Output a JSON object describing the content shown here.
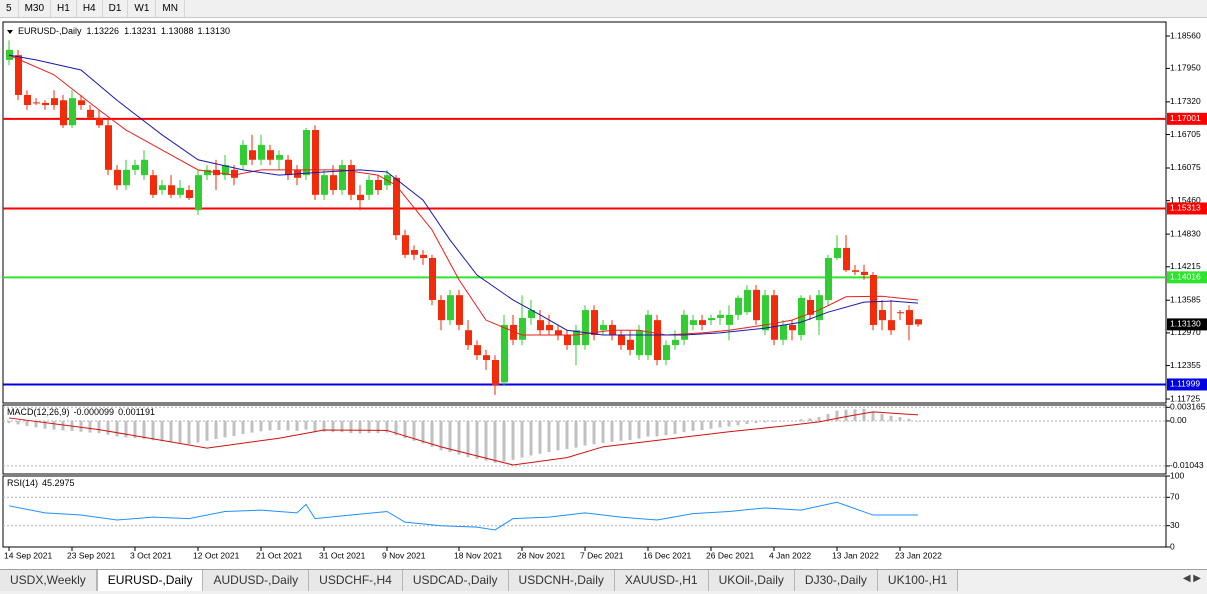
{
  "toolbar": {
    "buttons": [
      "5",
      "M30",
      "H1",
      "H4",
      "D1",
      "W1",
      "MN"
    ]
  },
  "tabs": [
    "USDX,Weekly",
    "EURUSD-,Daily",
    "AUDUSD-,Daily",
    "USDCHF-,H4",
    "USDCAD-,Daily",
    "USDCNH-,Daily",
    "XAUUSD-,H1",
    "UKOil-,Daily",
    "DJ30-,Daily",
    "UK100-,H1"
  ],
  "chart_data": [
    {
      "type": "candlestick",
      "title": "EURUSD-,Daily",
      "categories": [
        "14 Sep 2021",
        null,
        null,
        null,
        null,
        null,
        null,
        "23 Sep 2021",
        null,
        null,
        null,
        null,
        null,
        null,
        "3 Oct 2021",
        null,
        null,
        null,
        null,
        null,
        null,
        "12 Oct 2021",
        null,
        null,
        null,
        null,
        null,
        null,
        "21 Oct 2021",
        null,
        null,
        null,
        null,
        null,
        null,
        "31 Oct 2021",
        null,
        null,
        null,
        null,
        null,
        null,
        "9 Nov 2021",
        null,
        null,
        null,
        null,
        null,
        null,
        null,
        "18 Nov 2021",
        null,
        null,
        null,
        null,
        null,
        null,
        "28 Nov 2021",
        null,
        null,
        null,
        null,
        null,
        null,
        "7 Dec 2021",
        null,
        null,
        null,
        null,
        null,
        null,
        "16 Dec 2021",
        null,
        null,
        null,
        null,
        null,
        null,
        "26 Dec 2021",
        null,
        null,
        null,
        null,
        null,
        null,
        "4 Jan 2022",
        null,
        null,
        null,
        null,
        null,
        null,
        "13 Jan 2022",
        null,
        null,
        null,
        null,
        null,
        null,
        "23 Jan 2022",
        null,
        null
      ],
      "candles": [
        [
          1.1811,
          1.1848,
          1.1801,
          1.183
        ],
        [
          1.182,
          1.183,
          1.1735,
          1.1745
        ],
        [
          1.1745,
          1.1754,
          1.1717,
          1.1726
        ],
        [
          1.1731,
          1.1739,
          1.1726,
          1.173
        ],
        [
          1.173,
          1.1735,
          1.1717,
          1.1726
        ],
        [
          1.1739,
          1.1754,
          1.1717,
          1.1726
        ],
        [
          1.1735,
          1.1745,
          1.1683,
          1.1688
        ],
        [
          1.1688,
          1.1754,
          1.1683,
          1.1739
        ],
        [
          1.1735,
          1.1745,
          1.1717,
          1.1726
        ],
        [
          1.1717,
          1.1726,
          1.1698,
          1.1702
        ],
        [
          1.1702,
          1.1717,
          1.1683,
          1.1688
        ],
        [
          1.1688,
          1.1698,
          1.1594,
          1.1604
        ],
        [
          1.1604,
          1.1613,
          1.1566,
          1.1575
        ],
        [
          1.1575,
          1.1623,
          1.1566,
          1.1604
        ],
        [
          1.1604,
          1.1623,
          1.1594,
          1.1613
        ],
        [
          1.1594,
          1.1641,
          1.1585,
          1.1623
        ],
        [
          1.1594,
          1.1604,
          1.1551,
          1.1557
        ],
        [
          1.1566,
          1.1585,
          1.1557,
          1.1575
        ],
        [
          1.1575,
          1.1594,
          1.1551,
          1.1557
        ],
        [
          1.1557,
          1.1585,
          1.1551,
          1.157
        ],
        [
          1.1566,
          1.1575,
          1.1547,
          1.1551
        ],
        [
          1.1528,
          1.1604,
          1.1519,
          1.1594
        ],
        [
          1.1594,
          1.1613,
          1.1585,
          1.1604
        ],
        [
          1.1604,
          1.1623,
          1.1566,
          1.1594
        ],
        [
          1.1594,
          1.1632,
          1.1585,
          1.1613
        ],
        [
          1.1604,
          1.1613,
          1.1575,
          1.1589
        ],
        [
          1.1613,
          1.166,
          1.1604,
          1.1651
        ],
        [
          1.1641,
          1.167,
          1.1613,
          1.1623
        ],
        [
          1.1623,
          1.167,
          1.1613,
          1.1651
        ],
        [
          1.1641,
          1.1651,
          1.1613,
          1.1623
        ],
        [
          1.1623,
          1.1641,
          1.1604,
          1.1632
        ],
        [
          1.1623,
          1.1632,
          1.1585,
          1.1594
        ],
        [
          1.1604,
          1.1613,
          1.1575,
          1.1589
        ],
        [
          1.1594,
          1.1683,
          1.1585,
          1.1679
        ],
        [
          1.1679,
          1.1688,
          1.1547,
          1.1557
        ],
        [
          1.1557,
          1.1604,
          1.1547,
          1.1594
        ],
        [
          1.1594,
          1.1613,
          1.1557,
          1.1566
        ],
        [
          1.1566,
          1.1623,
          1.1557,
          1.1613
        ],
        [
          1.1613,
          1.1623,
          1.1547,
          1.1557
        ],
        [
          1.1557,
          1.1575,
          1.1528,
          1.1547
        ],
        [
          1.1557,
          1.1594,
          1.1547,
          1.1585
        ],
        [
          1.1585,
          1.1594,
          1.1557,
          1.1566
        ],
        [
          1.1575,
          1.1604,
          1.1566,
          1.1594
        ],
        [
          1.1589,
          1.1594,
          1.1472,
          1.1481
        ],
        [
          1.1481,
          1.1491,
          1.1438,
          1.1444
        ],
        [
          1.1453,
          1.1462,
          1.1434,
          1.1444
        ],
        [
          1.1444,
          1.1453,
          1.1425,
          1.1438
        ],
        [
          1.1438,
          1.1444,
          1.1349,
          1.1359
        ],
        [
          1.1359,
          1.1368,
          1.1302,
          1.1321
        ],
        [
          1.1321,
          1.1378,
          1.1312,
          1.1368
        ],
        [
          1.1368,
          1.1378,
          1.1302,
          1.1312
        ],
        [
          1.1302,
          1.1321,
          1.1265,
          1.1274
        ],
        [
          1.1274,
          1.1283,
          1.1246,
          1.1255
        ],
        [
          1.1255,
          1.1265,
          1.1227,
          1.1246
        ],
        [
          1.1246,
          1.1255,
          1.118,
          1.1199
        ],
        [
          1.1204,
          1.1331,
          1.1199,
          1.1312
        ],
        [
          1.1312,
          1.1331,
          1.1274,
          1.1284
        ],
        [
          1.1284,
          1.1368,
          1.1274,
          1.1325
        ],
        [
          1.1325,
          1.1359,
          1.1312,
          1.134
        ],
        [
          1.1321,
          1.134,
          1.1293,
          1.1302
        ],
        [
          1.1312,
          1.1331,
          1.1293,
          1.1302
        ],
        [
          1.1302,
          1.1312,
          1.1283,
          1.1293
        ],
        [
          1.1293,
          1.1302,
          1.1265,
          1.1274
        ],
        [
          1.1274,
          1.1312,
          1.1236,
          1.1302
        ],
        [
          1.1274,
          1.1349,
          1.1265,
          1.134
        ],
        [
          1.134,
          1.1349,
          1.1283,
          1.1293
        ],
        [
          1.1302,
          1.1321,
          1.1293,
          1.1312
        ],
        [
          1.1312,
          1.1321,
          1.1283,
          1.1293
        ],
        [
          1.1293,
          1.1302,
          1.1265,
          1.1274
        ],
        [
          1.1284,
          1.1302,
          1.1255,
          1.1265
        ],
        [
          1.1255,
          1.1312,
          1.1246,
          1.1302
        ],
        [
          1.1255,
          1.134,
          1.1246,
          1.1331
        ],
        [
          1.1321,
          1.1331,
          1.1236,
          1.1246
        ],
        [
          1.1246,
          1.1283,
          1.1236,
          1.1274
        ],
        [
          1.1274,
          1.1302,
          1.1265,
          1.1284
        ],
        [
          1.1284,
          1.134,
          1.1274,
          1.1331
        ],
        [
          1.1312,
          1.1331,
          1.1302,
          1.1321
        ],
        [
          1.1321,
          1.1331,
          1.1302,
          1.1312
        ],
        [
          1.1321,
          1.1331,
          1.1312,
          1.1325
        ],
        [
          1.1325,
          1.134,
          1.1312,
          1.1331
        ],
        [
          1.1312,
          1.1349,
          1.1283,
          1.1331
        ],
        [
          1.1331,
          1.1368,
          1.1321,
          1.1363
        ],
        [
          1.1336,
          1.1387,
          1.1331,
          1.1378
        ],
        [
          1.1378,
          1.1387,
          1.1312,
          1.1321
        ],
        [
          1.1302,
          1.1378,
          1.1293,
          1.1368
        ],
        [
          1.1368,
          1.1378,
          1.1274,
          1.1284
        ],
        [
          1.1284,
          1.1321,
          1.1274,
          1.1312
        ],
        [
          1.1312,
          1.1321,
          1.1283,
          1.1302
        ],
        [
          1.1293,
          1.1368,
          1.1283,
          1.1363
        ],
        [
          1.1359,
          1.1368,
          1.1321,
          1.1331
        ],
        [
          1.1321,
          1.1378,
          1.1293,
          1.1368
        ],
        [
          1.1359,
          1.1444,
          1.1349,
          1.1438
        ],
        [
          1.1438,
          1.1481,
          1.1434,
          1.1457
        ],
        [
          1.1457,
          1.1481,
          1.1412,
          1.1415
        ],
        [
          1.1415,
          1.1425,
          1.1406,
          1.1412
        ],
        [
          1.1412,
          1.1425,
          1.1397,
          1.1406
        ],
        [
          1.1406,
          1.1412,
          1.1302,
          1.1312
        ],
        [
          1.134,
          1.1359,
          1.1302,
          1.1321
        ],
        [
          1.1321,
          1.1359,
          1.1293,
          1.1302
        ],
        [
          1.1336,
          1.134,
          1.1321,
          1.1334
        ],
        [
          1.134,
          1.1349,
          1.1283,
          1.1312
        ],
        [
          1.13226,
          1.13231,
          1.13088,
          1.1313
        ]
      ],
      "up_color": "#32cd32",
      "down_color": "#f22b0a",
      "series": [
        {
          "color": "#e8201a",
          "x": [
            0,
            5,
            10,
            13,
            18,
            21,
            25,
            28,
            32,
            37,
            41,
            43,
            47,
            50,
            53,
            57,
            60,
            63,
            67,
            70,
            73,
            77,
            80,
            84,
            87,
            90,
            93,
            97,
            101
          ],
          "values": [
            1.182,
            1.1783,
            1.1717,
            1.1679,
            1.1632,
            1.1604,
            1.1594,
            1.1604,
            1.1604,
            1.1604,
            1.1594,
            1.1575,
            1.1491,
            1.1397,
            1.1321,
            1.1293,
            1.1293,
            1.1293,
            1.1302,
            1.1302,
            1.1293,
            1.1297,
            1.1302,
            1.1312,
            1.1321,
            1.134,
            1.1365,
            1.1366,
            1.1359
          ]
        },
        {
          "color": "#1a1aa8",
          "x": [
            0,
            3,
            8,
            12,
            17,
            21,
            26,
            30,
            35,
            39,
            42,
            46,
            49,
            52,
            56,
            59,
            62,
            66,
            70,
            75,
            79,
            84,
            88,
            91,
            95,
            98,
            101
          ],
          "values": [
            1.182,
            1.1811,
            1.1792,
            1.1735,
            1.167,
            1.1623,
            1.1604,
            1.1594,
            1.16,
            1.1604,
            1.16,
            1.1547,
            1.1472,
            1.1406,
            1.1359,
            1.1331,
            1.1302,
            1.1293,
            1.1293,
            1.1293,
            1.1297,
            1.1306,
            1.1317,
            1.1336,
            1.1355,
            1.1357,
            1.1353
          ]
        }
      ],
      "levels": [
        {
          "value": 1.17001,
          "color": "#ff0000"
        },
        {
          "value": 1.15313,
          "color": "#ff0000"
        },
        {
          "value": 1.14016,
          "color": "#2ee52e"
        },
        {
          "value": 1.11999,
          "color": "#0000e0"
        }
      ],
      "last_price": {
        "value": 1.1313,
        "label": "1.13130"
      },
      "ylim": [
        1.1165,
        1.18824
      ],
      "yticks": [
        {
          "value": 1.1856,
          "label": "1.18560"
        },
        {
          "value": 1.1795,
          "label": "1.17950"
        },
        {
          "value": 1.1732,
          "label": "1.17320"
        },
        1.16705,
        1.16075,
        {
          "value": 1.1546,
          "label": "1.15460"
        },
        {
          "value": 1.1483,
          "label": "1.14830"
        },
        1.14215,
        1.13585,
        {
          "value": 1.1297,
          "label": "1.12970"
        },
        1.12355,
        1.11725
      ]
    },
    {
      "type": "macd",
      "title": "MACD(12,26,9)",
      "current": [
        -9.9e-05,
        0.001191
      ],
      "values": [
        -0.0005,
        -0.0008,
        -0.0012,
        -0.0015,
        -0.0018,
        -0.002,
        -0.0022,
        -0.0023,
        -0.0025,
        -0.0027,
        -0.0028,
        -0.0032,
        -0.0036,
        -0.0038,
        -0.004,
        -0.0042,
        -0.0045,
        -0.0047,
        -0.005,
        -0.0052,
        -0.0054,
        -0.005,
        -0.0046,
        -0.0042,
        -0.0038,
        -0.0035,
        -0.003,
        -0.0027,
        -0.0024,
        -0.0022,
        -0.0021,
        -0.0022,
        -0.0023,
        -0.002,
        -0.0024,
        -0.0025,
        -0.0026,
        -0.0026,
        -0.0028,
        -0.0029,
        -0.0028,
        -0.0028,
        -0.0027,
        -0.0033,
        -0.004,
        -0.0046,
        -0.0052,
        -0.006,
        -0.0068,
        -0.0072,
        -0.0078,
        -0.0084,
        -0.0088,
        -0.0092,
        -0.0097,
        -0.0094,
        -0.009,
        -0.0085,
        -0.008,
        -0.0076,
        -0.0072,
        -0.0068,
        -0.0065,
        -0.0062,
        -0.0057,
        -0.0054,
        -0.0051,
        -0.0048,
        -0.0046,
        -0.0044,
        -0.0041,
        -0.0036,
        -0.0036,
        -0.0033,
        -0.003,
        -0.0026,
        -0.0023,
        -0.0021,
        -0.0018,
        -0.0015,
        -0.0013,
        -0.001,
        -0.0007,
        -0.0005,
        -0.0003,
        -0.0002,
        -0.0001,
        0.0,
        0.0004,
        0.0006,
        0.0009,
        0.0016,
        0.0024,
        0.0026,
        0.0027,
        0.0028,
        0.002,
        0.0016,
        0.0012,
        0.0009,
        0.0005,
        -0.0001
      ],
      "color": "#c0c0c0",
      "signal": {
        "color": "#d01010",
        "x": [
          0,
          10,
          22,
          30,
          35,
          42,
          48,
          56,
          62,
          66,
          72,
          80,
          86,
          90,
          93,
          96,
          101
        ],
        "values": [
          0.0007,
          -0.002,
          -0.0063,
          -0.004,
          -0.0021,
          -0.0022,
          -0.006,
          -0.0102,
          -0.0085,
          -0.006,
          -0.0045,
          -0.0025,
          -0.0012,
          -0.0002,
          0.001,
          0.0021,
          0.0014
        ]
      },
      "ylim": [
        -0.0123,
        0.0037
      ],
      "yticks": [
        0.003165,
        {
          "value": 0,
          "label": "0.00"
        },
        -0.01043
      ]
    },
    {
      "type": "rsi",
      "title": "RSI(14)",
      "current": 45.2975,
      "color": "#1e90ff",
      "x": [
        0,
        4,
        8,
        12,
        16,
        20,
        24,
        28,
        32,
        33,
        34,
        38,
        42,
        44,
        48,
        52,
        54,
        56,
        60,
        64,
        68,
        72,
        76,
        80,
        84,
        88,
        92,
        96,
        101
      ],
      "values": [
        58,
        48,
        45,
        38,
        42,
        40,
        50,
        52,
        48,
        60,
        40,
        45,
        50,
        35,
        30,
        28,
        24,
        40,
        42,
        48,
        42,
        38,
        47,
        50,
        55,
        52,
        63,
        45,
        45
      ],
      "ylim": [
        0,
        100
      ],
      "yticks": [
        100,
        70,
        30,
        0
      ]
    }
  ]
}
